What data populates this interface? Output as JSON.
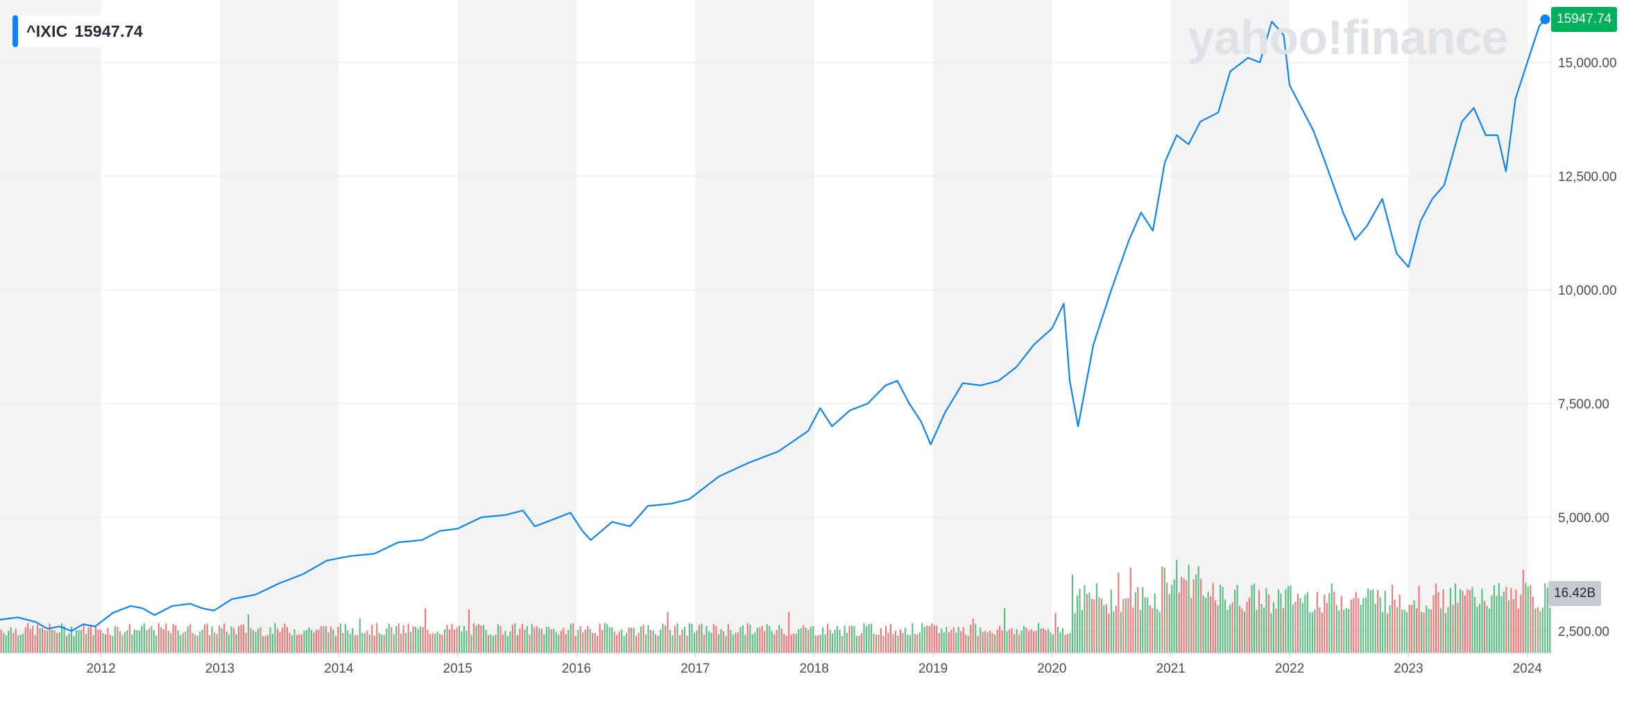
{
  "ticker": {
    "symbol": "^IXIC",
    "last_price": "15947.74"
  },
  "watermark": "yahoo!finance",
  "volume_badge": "16.42B",
  "colors": {
    "line": "#0b84f3",
    "up_volume": "#3bb36b",
    "down_volume": "#ee5e5e",
    "price_badge": "#00b05b",
    "band": "#f3f3f3"
  },
  "chart_data": {
    "type": "line",
    "title": "",
    "xlabel": "",
    "ylabel": "",
    "x_tick_labels": [
      "2012",
      "2013",
      "2014",
      "2015",
      "2016",
      "2017",
      "2018",
      "2019",
      "2020",
      "2021",
      "2022",
      "2023",
      "2024"
    ],
    "y_tick_labels": [
      "15,000.00",
      "12,500.00",
      "10,000.00",
      "7,500.00",
      "5,000.00",
      "2,500.00"
    ],
    "y_ticks": [
      15000,
      12500,
      10000,
      7500,
      5000,
      2500
    ],
    "ylim": [
      2000,
      16500
    ],
    "xlim": [
      2011.15,
      2024.2
    ],
    "grid": true,
    "series": [
      {
        "x": [
          2011.15,
          2011.3,
          2011.45,
          2011.55,
          2011.65,
          2011.75,
          2011.85,
          2011.95,
          2012.1,
          2012.25,
          2012.35,
          2012.45,
          2012.6,
          2012.75,
          2012.85,
          2012.95,
          2013.1,
          2013.3,
          2013.5,
          2013.7,
          2013.9,
          2014.1,
          2014.3,
          2014.5,
          2014.7,
          2014.85,
          2015.0,
          2015.2,
          2015.4,
          2015.55,
          2015.65,
          2015.8,
          2015.95,
          2016.05,
          2016.12,
          2016.3,
          2016.45,
          2016.6,
          2016.8,
          2016.95,
          2017.2,
          2017.45,
          2017.7,
          2017.95,
          2018.05,
          2018.15,
          2018.3,
          2018.45,
          2018.6,
          2018.7,
          2018.8,
          2018.9,
          2018.98,
          2019.1,
          2019.25,
          2019.4,
          2019.55,
          2019.7,
          2019.85,
          2020.0,
          2020.1,
          2020.15,
          2020.22,
          2020.35,
          2020.5,
          2020.65,
          2020.75,
          2020.85,
          2020.95,
          2021.05,
          2021.15,
          2021.25,
          2021.4,
          2021.5,
          2021.65,
          2021.75,
          2021.85,
          2021.95,
          2022.0,
          2022.1,
          2022.2,
          2022.3,
          2022.45,
          2022.55,
          2022.65,
          2022.78,
          2022.9,
          2023.0,
          2023.1,
          2023.2,
          2023.3,
          2023.45,
          2023.55,
          2023.65,
          2023.75,
          2023.82,
          2023.9,
          2024.0,
          2024.1,
          2024.15
        ],
        "y": [
          2750,
          2800,
          2700,
          2550,
          2600,
          2500,
          2650,
          2600,
          2900,
          3050,
          3000,
          2850,
          3050,
          3100,
          3000,
          2950,
          3200,
          3300,
          3550,
          3750,
          4050,
          4150,
          4200,
          4450,
          4500,
          4700,
          4750,
          5000,
          5050,
          5150,
          4800,
          4950,
          5100,
          4700,
          4500,
          4900,
          4800,
          5250,
          5300,
          5400,
          5900,
          6200,
          6450,
          6900,
          7400,
          7000,
          7350,
          7500,
          7900,
          8000,
          7500,
          7100,
          6600,
          7300,
          7950,
          7900,
          8000,
          8300,
          8800,
          9150,
          9700,
          8000,
          7000,
          8800,
          10000,
          11100,
          11700,
          11300,
          12800,
          13400,
          13200,
          13700,
          13900,
          14800,
          15100,
          15000,
          15900,
          15600,
          14500,
          14000,
          13500,
          12800,
          11700,
          11100,
          11400,
          12000,
          10800,
          10500,
          11500,
          12000,
          12300,
          13700,
          14000,
          13400,
          13400,
          12600,
          14200,
          15000,
          15800,
          15947
        ]
      }
    ]
  }
}
